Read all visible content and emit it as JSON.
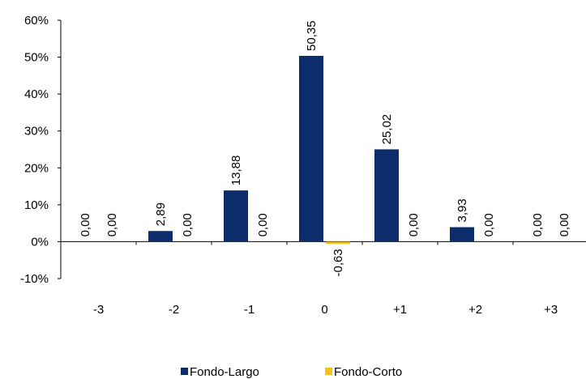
{
  "chart_data": {
    "type": "bar",
    "categories": [
      "-3",
      "-2",
      "-1",
      "0",
      "+1",
      "+2",
      "+3"
    ],
    "series": [
      {
        "name": "Fondo-Largo",
        "color": "#0B2D6B",
        "values": [
          0.0,
          2.89,
          13.88,
          50.35,
          25.02,
          3.93,
          0.0
        ],
        "labels": [
          "0,00",
          "2,89",
          "13,88",
          "50,35",
          "25,02",
          "3,93",
          "0,00"
        ]
      },
      {
        "name": "Fondo-Corto",
        "color": "#F5C21B",
        "values": [
          0.0,
          0.0,
          0.0,
          -0.63,
          0.0,
          0.0,
          0.0
        ],
        "labels": [
          "0,00",
          "0,00",
          "0,00",
          "-0,63",
          "0,00",
          "0,00",
          "0,00"
        ]
      }
    ],
    "y_ticks": [
      "-10%",
      "0%",
      "10%",
      "20%",
      "30%",
      "40%",
      "50%",
      "60%"
    ],
    "ylim": [
      -10,
      60
    ],
    "grid": false,
    "legend_position": "bottom"
  }
}
